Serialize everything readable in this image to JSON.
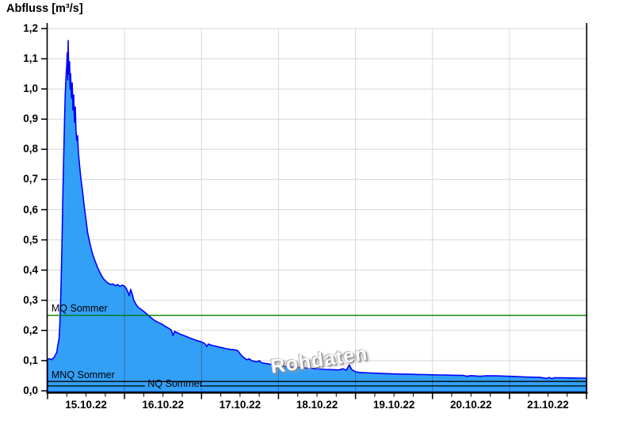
{
  "title": "Abfluss [m³/s]",
  "watermark": "Rohdaten",
  "chart_data": {
    "type": "area",
    "title": "Abfluss [m³/s]",
    "ylabel": "Abfluss [m³/s]",
    "xlabel": "",
    "ylim": [
      0,
      1.2
    ],
    "y_tick_step": 0.1,
    "grid": true,
    "y_tick_labels": [
      "0,0",
      "0,1",
      "0,2",
      "0,3",
      "0,4",
      "0,5",
      "0,6",
      "0,7",
      "0,8",
      "0,9",
      "1,0",
      "1,1",
      "1,2"
    ],
    "x_days": [
      "15.10.22",
      "16.10.22",
      "17.10.22",
      "18.10.22",
      "19.10.22",
      "20.10.22",
      "21.10.22"
    ],
    "x_range_days": 7,
    "x_minor_tick_days": 0.25,
    "colors": {
      "area_fill": "#33A0F7",
      "area_stroke": "#0000FF",
      "grid": "#D8D8D8",
      "grid_over_area": "rgba(35,50,70,0.45)",
      "axis": "#000000",
      "mq_line": "#007E00",
      "ref_line": "#000000"
    },
    "reference_lines": [
      {
        "label": "MQ Sommer",
        "value": 0.25,
        "color": "#007E00",
        "label_pos": "above",
        "label_x_day": 0.04
      },
      {
        "label": "MNQ Sommer",
        "value": 0.031,
        "color": "#000000",
        "label_pos": "above",
        "label_x_day": 0.04
      },
      {
        "label": "NQ Sommer",
        "value": 0.016,
        "color": "#000000",
        "label_pos": "on",
        "label_x_day": 1.3,
        "line_gap_days": [
          1.266,
          1.986
        ]
      }
    ],
    "series": [
      {
        "name": "Abfluss Rohdaten",
        "unit": "m³/s",
        "x_unit": "days since 15.10.22 00:00",
        "points": [
          [
            0.0,
            0.105
          ],
          [
            0.03,
            0.106
          ],
          [
            0.05,
            0.103
          ],
          [
            0.07,
            0.107
          ],
          [
            0.09,
            0.112
          ],
          [
            0.1,
            0.118
          ],
          [
            0.12,
            0.128
          ],
          [
            0.13,
            0.145
          ],
          [
            0.15,
            0.175
          ],
          [
            0.16,
            0.22
          ],
          [
            0.17,
            0.3
          ],
          [
            0.18,
            0.4
          ],
          [
            0.19,
            0.53
          ],
          [
            0.2,
            0.66
          ],
          [
            0.21,
            0.78
          ],
          [
            0.22,
            0.89
          ],
          [
            0.23,
            0.98
          ],
          [
            0.24,
            1.04
          ],
          [
            0.25,
            1.08
          ],
          [
            0.255,
            1.12
          ],
          [
            0.262,
            1.03
          ],
          [
            0.268,
            1.16
          ],
          [
            0.273,
            1.09
          ],
          [
            0.279,
            1.05
          ],
          [
            0.286,
            1.09
          ],
          [
            0.293,
            1.0
          ],
          [
            0.3,
            1.05
          ],
          [
            0.31,
            0.97
          ],
          [
            0.32,
            1.02
          ],
          [
            0.33,
            0.93
          ],
          [
            0.34,
            0.98
          ],
          [
            0.35,
            0.89
          ],
          [
            0.36,
            0.94
          ],
          [
            0.37,
            0.86
          ],
          [
            0.38,
            0.83
          ],
          [
            0.39,
            0.845
          ],
          [
            0.4,
            0.79
          ],
          [
            0.415,
            0.75
          ],
          [
            0.43,
            0.71
          ],
          [
            0.445,
            0.68
          ],
          [
            0.46,
            0.65
          ],
          [
            0.475,
            0.615
          ],
          [
            0.49,
            0.585
          ],
          [
            0.505,
            0.555
          ],
          [
            0.52,
            0.525
          ],
          [
            0.54,
            0.5
          ],
          [
            0.56,
            0.478
          ],
          [
            0.58,
            0.458
          ],
          [
            0.6,
            0.442
          ],
          [
            0.62,
            0.428
          ],
          [
            0.64,
            0.415
          ],
          [
            0.66,
            0.402
          ],
          [
            0.68,
            0.392
          ],
          [
            0.7,
            0.382
          ],
          [
            0.73,
            0.37
          ],
          [
            0.76,
            0.362
          ],
          [
            0.79,
            0.356
          ],
          [
            0.82,
            0.352
          ],
          [
            0.85,
            0.354
          ],
          [
            0.88,
            0.348
          ],
          [
            0.91,
            0.352
          ],
          [
            0.94,
            0.346
          ],
          [
            0.97,
            0.35
          ],
          [
            1.0,
            0.347
          ],
          [
            1.02,
            0.34
          ],
          [
            1.04,
            0.33
          ],
          [
            1.06,
            0.315
          ],
          [
            1.08,
            0.336
          ],
          [
            1.1,
            0.32
          ],
          [
            1.12,
            0.3
          ],
          [
            1.15,
            0.286
          ],
          [
            1.18,
            0.276
          ],
          [
            1.22,
            0.269
          ],
          [
            1.26,
            0.261
          ],
          [
            1.3,
            0.252
          ],
          [
            1.34,
            0.243
          ],
          [
            1.38,
            0.235
          ],
          [
            1.42,
            0.229
          ],
          [
            1.46,
            0.224
          ],
          [
            1.5,
            0.219
          ],
          [
            1.54,
            0.212
          ],
          [
            1.58,
            0.206
          ],
          [
            1.61,
            0.2
          ],
          [
            1.63,
            0.183
          ],
          [
            1.65,
            0.197
          ],
          [
            1.68,
            0.193
          ],
          [
            1.72,
            0.188
          ],
          [
            1.76,
            0.184
          ],
          [
            1.8,
            0.18
          ],
          [
            1.84,
            0.176
          ],
          [
            1.88,
            0.172
          ],
          [
            1.92,
            0.168
          ],
          [
            1.96,
            0.165
          ],
          [
            2.0,
            0.162
          ],
          [
            2.04,
            0.157
          ],
          [
            2.07,
            0.147
          ],
          [
            2.09,
            0.155
          ],
          [
            2.13,
            0.151
          ],
          [
            2.18,
            0.148
          ],
          [
            2.23,
            0.145
          ],
          [
            2.28,
            0.142
          ],
          [
            2.33,
            0.139
          ],
          [
            2.38,
            0.137
          ],
          [
            2.43,
            0.136
          ],
          [
            2.47,
            0.133
          ],
          [
            2.5,
            0.123
          ],
          [
            2.53,
            0.114
          ],
          [
            2.56,
            0.108
          ],
          [
            2.59,
            0.103
          ],
          [
            2.62,
            0.106
          ],
          [
            2.65,
            0.1
          ],
          [
            2.68,
            0.098
          ],
          [
            2.72,
            0.096
          ],
          [
            2.75,
            0.1
          ],
          [
            2.78,
            0.093
          ],
          [
            2.82,
            0.091
          ],
          [
            2.87,
            0.089
          ],
          [
            2.92,
            0.087
          ],
          [
            2.96,
            0.085
          ],
          [
            3.0,
            0.083
          ],
          [
            3.08,
            0.081
          ],
          [
            3.16,
            0.079
          ],
          [
            3.24,
            0.078
          ],
          [
            3.32,
            0.076
          ],
          [
            3.4,
            0.075
          ],
          [
            3.5,
            0.073
          ],
          [
            3.6,
            0.071
          ],
          [
            3.7,
            0.07
          ],
          [
            3.78,
            0.069
          ],
          [
            3.84,
            0.073
          ],
          [
            3.88,
            0.068
          ],
          [
            3.92,
            0.086
          ],
          [
            3.95,
            0.071
          ],
          [
            4.0,
            0.063
          ],
          [
            4.05,
            0.061
          ],
          [
            4.1,
            0.06
          ],
          [
            4.2,
            0.059
          ],
          [
            4.3,
            0.058
          ],
          [
            4.4,
            0.057
          ],
          [
            4.5,
            0.056
          ],
          [
            4.6,
            0.0555
          ],
          [
            4.7,
            0.055
          ],
          [
            4.8,
            0.054
          ],
          [
            4.9,
            0.0538
          ],
          [
            5.0,
            0.053
          ],
          [
            5.1,
            0.0525
          ],
          [
            5.2,
            0.052
          ],
          [
            5.3,
            0.0515
          ],
          [
            5.4,
            0.051
          ],
          [
            5.45,
            0.048
          ],
          [
            5.5,
            0.0505
          ],
          [
            5.62,
            0.048
          ],
          [
            5.7,
            0.05
          ],
          [
            5.8,
            0.0495
          ],
          [
            5.9,
            0.049
          ],
          [
            6.0,
            0.048
          ],
          [
            6.1,
            0.047
          ],
          [
            6.2,
            0.046
          ],
          [
            6.3,
            0.0452
          ],
          [
            6.4,
            0.0445
          ],
          [
            6.48,
            0.041
          ],
          [
            6.52,
            0.044
          ],
          [
            6.55,
            0.04
          ],
          [
            6.58,
            0.043
          ],
          [
            6.65,
            0.0432
          ],
          [
            6.75,
            0.0428
          ],
          [
            6.85,
            0.0424
          ],
          [
            6.95,
            0.042
          ],
          [
            7.0,
            0.042
          ]
        ]
      }
    ],
    "annotations": [
      {
        "text": "Rohdaten",
        "style": "watermark",
        "position": "center-bottom",
        "rotation_deg": -8
      }
    ],
    "legend": null
  }
}
